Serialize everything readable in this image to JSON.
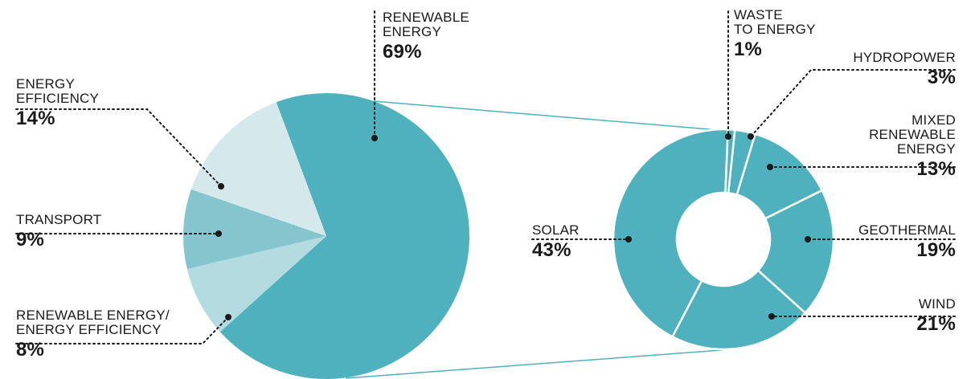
{
  "chart_data": [
    {
      "type": "pie",
      "slices": [
        {
          "label": "RENEWABLE ENERGY",
          "value": 69,
          "display": "69%",
          "color": "#4fb1bd"
        },
        {
          "label": "RENEWABLE ENERGY/ ENERGY EFFICIENCY",
          "value": 8,
          "display": "8%",
          "color": "#b3dbe0"
        },
        {
          "label": "TRANSPORT",
          "value": 9,
          "display": "9%",
          "color": "#85c5cd"
        },
        {
          "label": "ENERGY EFFICIENCY",
          "value": 14,
          "display": "14%",
          "color": "#d5e9ec"
        }
      ]
    },
    {
      "type": "donut",
      "slices": [
        {
          "label": "HYDROPOWER",
          "value": 3,
          "display": "3%",
          "color": "#4fb1bd"
        },
        {
          "label": "MIXED RENEWABLE ENERGY",
          "value": 13,
          "display": "13%",
          "color": "#4fb1bd"
        },
        {
          "label": "GEOTHERMAL",
          "value": 19,
          "display": "19%",
          "color": "#4fb1bd"
        },
        {
          "label": "WIND",
          "value": 21,
          "display": "21%",
          "color": "#4fb1bd"
        },
        {
          "label": "SOLAR",
          "value": 43,
          "display": "43%",
          "color": "#4fb1bd"
        },
        {
          "label": "WASTE TO ENERGY",
          "value": 1,
          "display": "1%",
          "color": "#4fb1bd"
        }
      ]
    }
  ],
  "labels": {
    "renewable": {
      "name": "RENEWABLE\nENERGY",
      "pct": "69%"
    },
    "efficiency": {
      "name": "ENERGY\nEFFICIENCY",
      "pct": "14%"
    },
    "transport": {
      "name": "TRANSPORT",
      "pct": "9%"
    },
    "re_ee": {
      "name": "RENEWABLE ENERGY/\nENERGY EFFICIENCY",
      "pct": "8%"
    },
    "waste": {
      "name": "WASTE\nTO ENERGY",
      "pct": "1%"
    },
    "hydro": {
      "name": "HYDROPOWER",
      "pct": "3%"
    },
    "mixed": {
      "name": "MIXED\nRENEWABLE\nENERGY",
      "pct": "13%"
    },
    "geo": {
      "name": "GEOTHERMAL",
      "pct": "19%"
    },
    "wind": {
      "name": "WIND",
      "pct": "21%"
    },
    "solar": {
      "name": "SOLAR",
      "pct": "43%"
    }
  },
  "colors": {
    "accent": "#4fb1bd",
    "leader": "#1a1a1a"
  }
}
